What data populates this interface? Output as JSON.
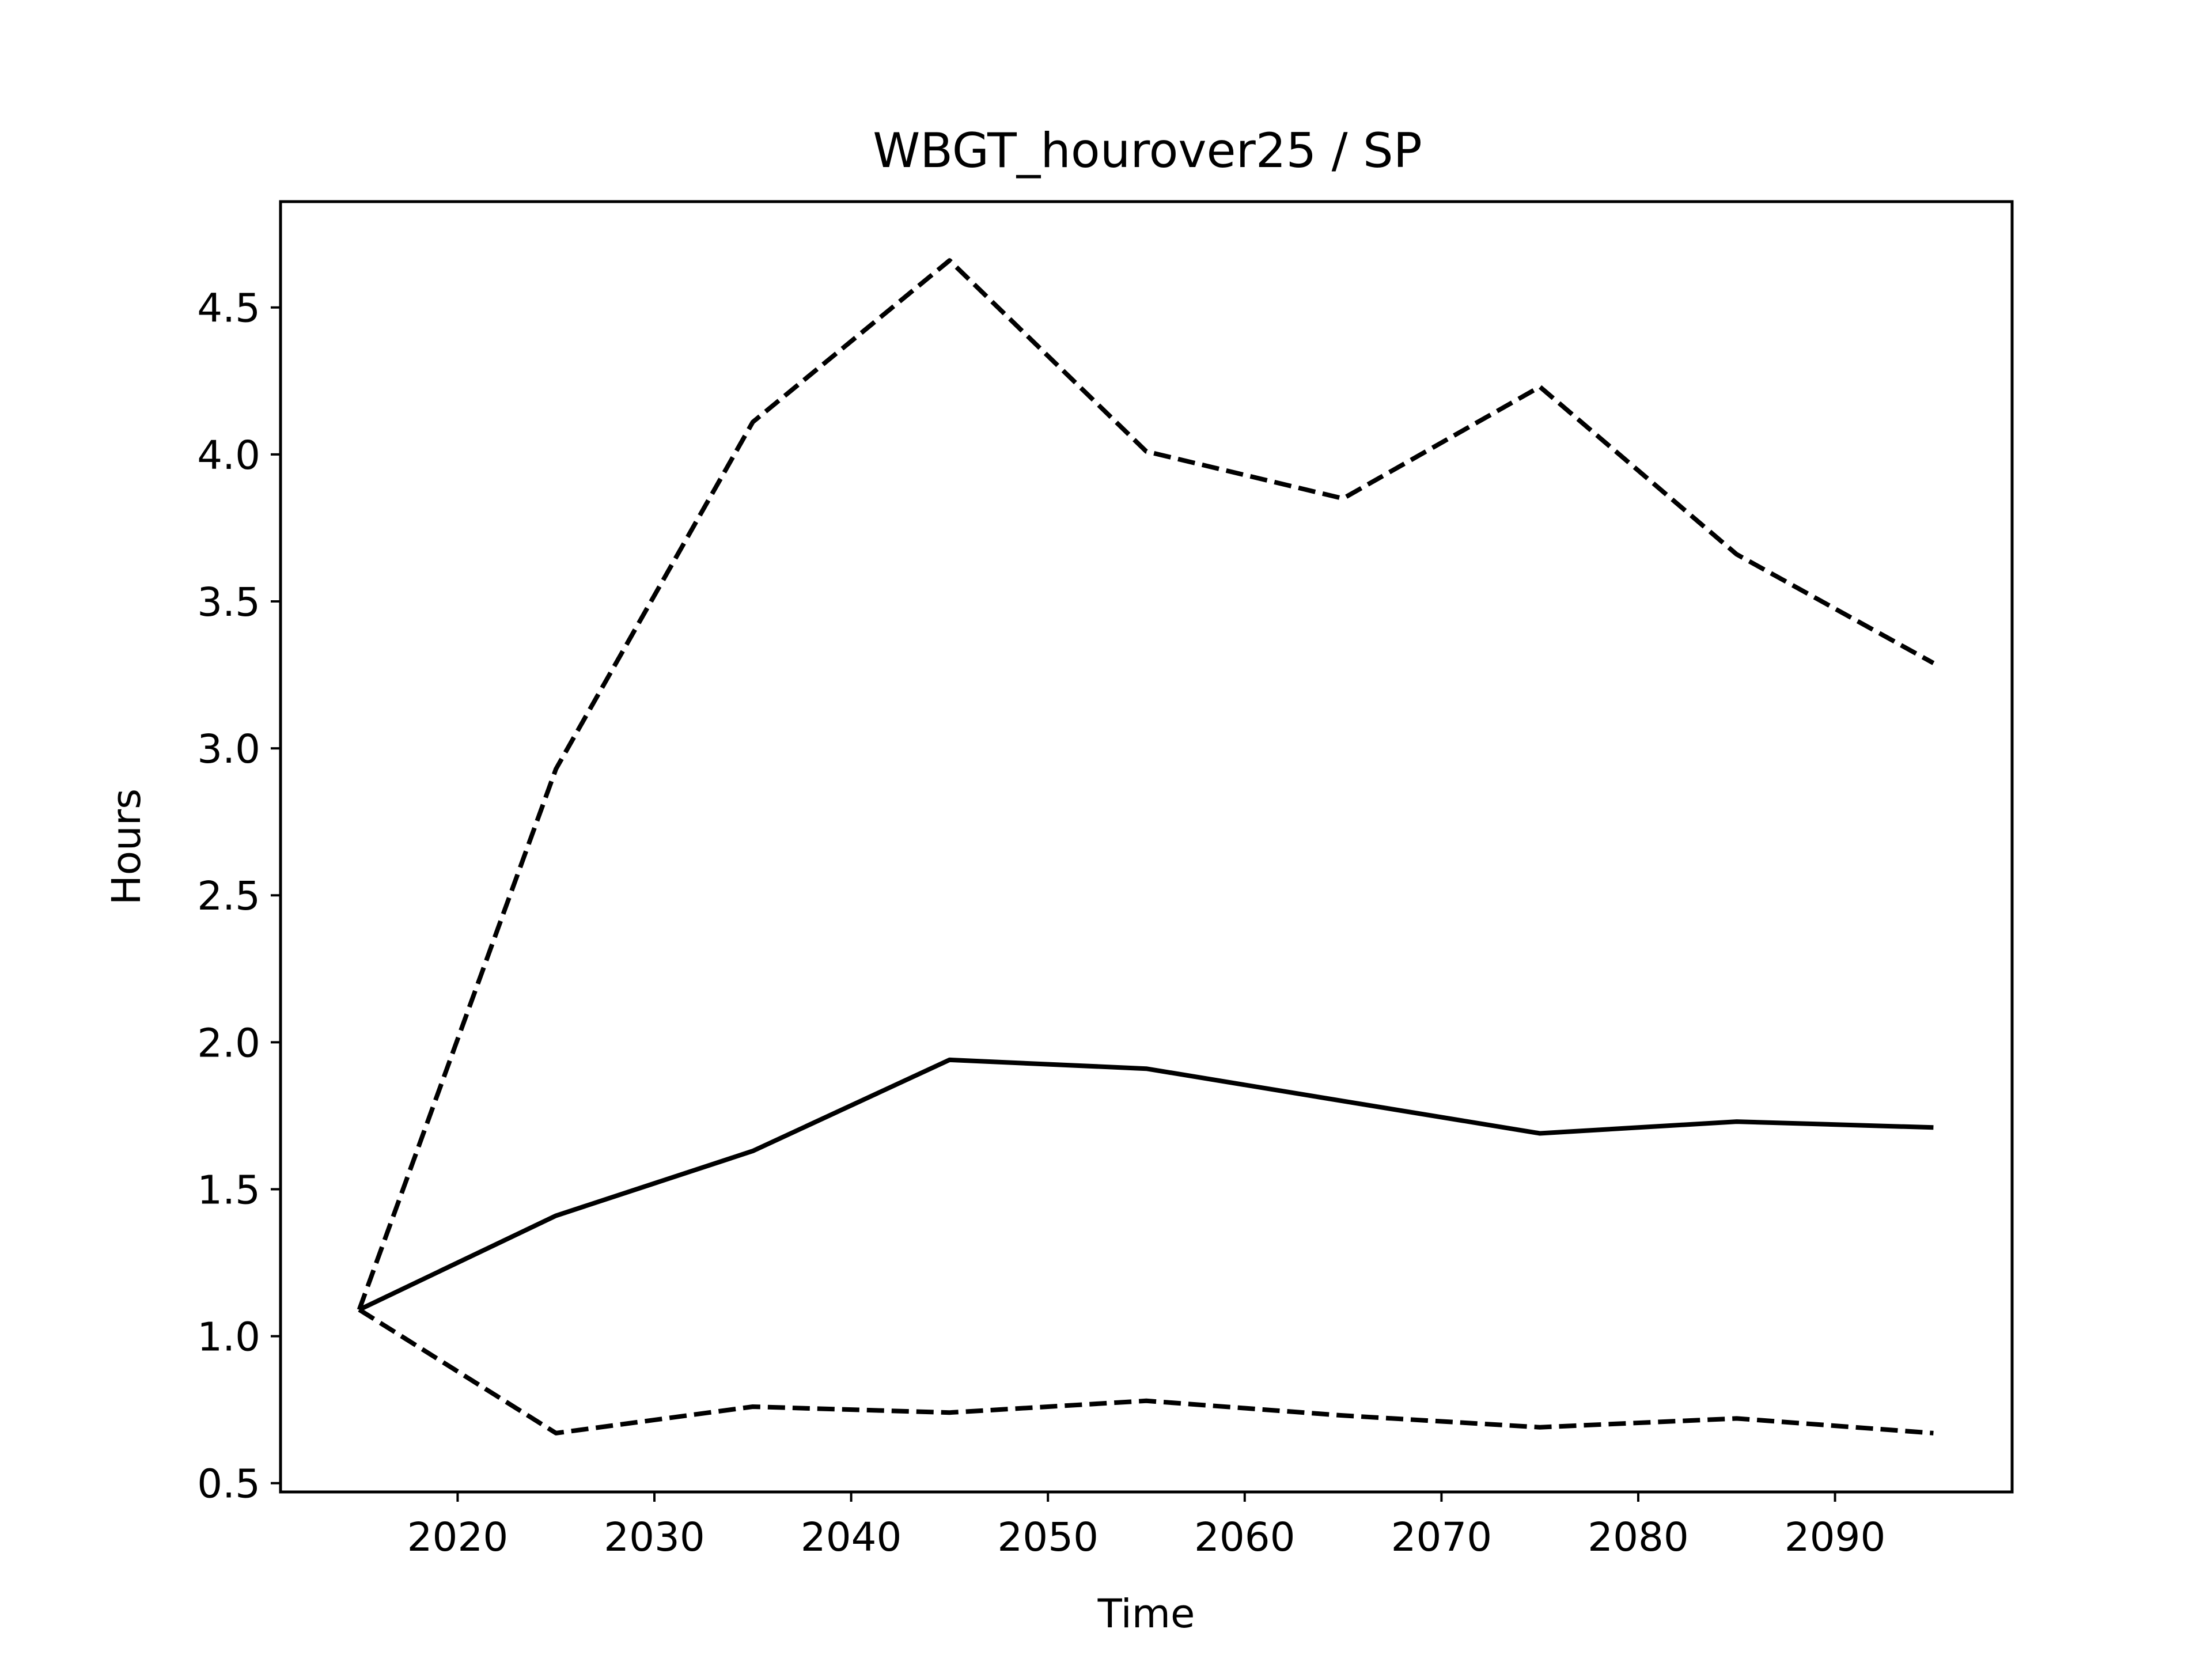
{
  "chart_data": {
    "type": "line",
    "title": "WBGT_hourover25 / SP",
    "xlabel": "Time",
    "ylabel": "Hours",
    "xlim": [
      2011,
      2099
    ],
    "ylim": [
      0.47,
      4.86
    ],
    "x_ticks": [
      2020,
      2030,
      2040,
      2050,
      2060,
      2070,
      2080,
      2090
    ],
    "y_ticks": [
      0.5,
      1.0,
      1.5,
      2.0,
      2.5,
      3.0,
      3.5,
      4.0,
      4.5
    ],
    "x_tick_labels": [
      "2020",
      "2030",
      "2040",
      "2050",
      "2060",
      "2070",
      "2080",
      "2090"
    ],
    "y_tick_labels": [
      "0.5",
      "1.0",
      "1.5",
      "2.0",
      "2.5",
      "3.0",
      "3.5",
      "4.0",
      "4.5"
    ],
    "x": [
      2015,
      2025,
      2035,
      2045,
      2055,
      2065,
      2075,
      2085,
      2095
    ],
    "grid": false,
    "legend": false,
    "series": [
      {
        "style": "solid",
        "color": "#000000",
        "values": [
          1.09,
          1.41,
          1.63,
          1.94,
          1.91,
          1.8,
          1.69,
          1.73,
          1.71
        ]
      },
      {
        "style": "dashed",
        "color": "#000000",
        "values": [
          1.09,
          2.93,
          4.11,
          4.66,
          4.01,
          3.85,
          4.23,
          3.66,
          3.29
        ]
      },
      {
        "style": "dashed",
        "color": "#000000",
        "values": [
          1.09,
          0.67,
          0.76,
          0.74,
          0.78,
          0.73,
          0.69,
          0.72,
          0.67
        ]
      }
    ]
  }
}
